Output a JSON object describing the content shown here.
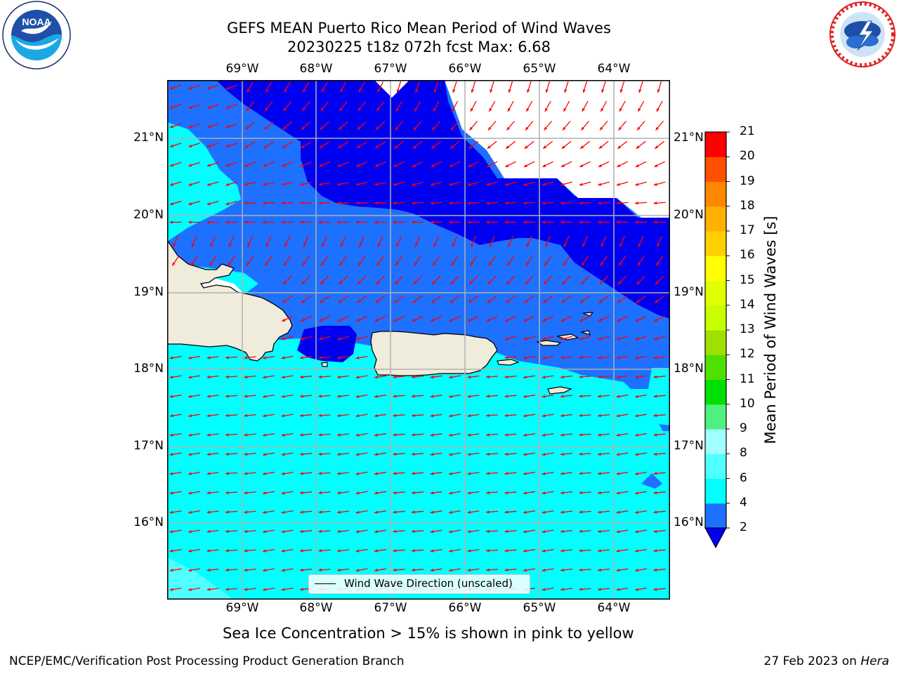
{
  "header": {
    "title_line1": "GEFS MEAN Puerto Rico Mean Period of Wind Waves",
    "title_line2": "20230225 t18z 072h fcst   Max: 6.68"
  },
  "logos": {
    "left": {
      "name": "noaa-logo",
      "text": "NOAA",
      "ring_text": "NATIONAL OCEANIC AND ATMOSPHERIC ADMINISTRATION · U.S. DEPARTMENT OF COMMERCE"
    },
    "right": {
      "name": "nws-logo",
      "ring_text": "NATIONAL WEATHER SERVICE"
    }
  },
  "map": {
    "lon_labels": [
      "69°W",
      "68°W",
      "67°W",
      "66°W",
      "65°W",
      "64°W"
    ],
    "lat_labels": [
      "21°N",
      "20°N",
      "19°N",
      "18°N",
      "17°N",
      "16°N"
    ],
    "legend_label": "Wind Wave Direction (unscaled)",
    "colors": {
      "level_2_4": "#1e70ff",
      "level_under_2": "#0000f0",
      "level_4_6": "#00ffff",
      "level_6_8": "#50ffff",
      "land": "#efecdc",
      "arrow": "#ff0000",
      "grid": "#b0b0b0"
    }
  },
  "colorbar": {
    "label": "Mean Period of Wind Waves [s]",
    "ticks": [
      "2",
      "4",
      "6",
      "8",
      "9",
      "10",
      "11",
      "12",
      "13",
      "14",
      "15",
      "16",
      "17",
      "18",
      "19",
      "20",
      "21"
    ],
    "colors": [
      "#1e70ff",
      "#00ffff",
      "#50ffff",
      "#a0ffff",
      "#50f080",
      "#00e000",
      "#50e000",
      "#a0e000",
      "#c8ff00",
      "#e0ff00",
      "#ffff00",
      "#ffd000",
      "#ffb000",
      "#ff8800",
      "#ff5000",
      "#ff0000"
    ],
    "under_color": "#0000f0"
  },
  "notes": {
    "ice": "Sea Ice Concentration > 15% is shown in pink to yellow",
    "footer_left": "NCEP/EMC/Verification Post Processing Product Generation Branch",
    "footer_date": "27 Feb 2023 on ",
    "footer_host": "Hera"
  }
}
